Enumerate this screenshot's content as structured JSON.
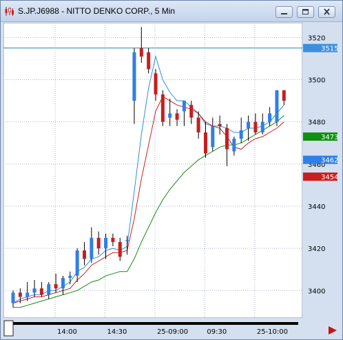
{
  "window": {
    "title": "S.JP.J6988 - NITTO DENKO CORP., 5 Min",
    "icon": "candlestick-chart-icon",
    "controls": [
      "minimize-icon",
      "restore-icon",
      "close-icon"
    ]
  },
  "chart_data": {
    "type": "candlestick",
    "yticks": [
      "3520",
      "3500",
      "3480",
      "3460",
      "3440",
      "3420",
      "3400"
    ],
    "xticks": [
      "14:00",
      "14:30",
      "25-09:00",
      "09:30",
      "25-10:00"
    ],
    "ylim": [
      3387,
      3527
    ],
    "price_labels": [
      {
        "text": "3515",
        "value": 3515,
        "color": "#3b8fe0"
      },
      {
        "text": "3473",
        "value": 3473,
        "color": "#109010"
      },
      {
        "text": "3462",
        "value": 3462,
        "color": "#2f7fe8"
      },
      {
        "text": "3454",
        "value": 3454,
        "color": "#c81e1e"
      }
    ],
    "hline": {
      "value": 3515,
      "color": "#208cac"
    },
    "candles": [
      {
        "o": 3394,
        "h": 3400,
        "l": 3392,
        "c": 3399
      },
      {
        "o": 3399,
        "h": 3401,
        "l": 3394,
        "c": 3397
      },
      {
        "o": 3397,
        "h": 3404,
        "l": 3395,
        "c": 3399
      },
      {
        "o": 3399,
        "h": 3405,
        "l": 3397,
        "c": 3401
      },
      {
        "o": 3401,
        "h": 3404,
        "l": 3397,
        "c": 3398
      },
      {
        "o": 3398,
        "h": 3404,
        "l": 3396,
        "c": 3403
      },
      {
        "o": 3403,
        "h": 3408,
        "l": 3399,
        "c": 3401
      },
      {
        "o": 3401,
        "h": 3407,
        "l": 3398,
        "c": 3406
      },
      {
        "o": 3406,
        "h": 3409,
        "l": 3403,
        "c": 3407
      },
      {
        "o": 3407,
        "h": 3420,
        "l": 3404,
        "c": 3419
      },
      {
        "o": 3419,
        "h": 3423,
        "l": 3412,
        "c": 3415
      },
      {
        "o": 3415,
        "h": 3430,
        "l": 3413,
        "c": 3425
      },
      {
        "o": 3425,
        "h": 3428,
        "l": 3417,
        "c": 3420
      },
      {
        "o": 3420,
        "h": 3427,
        "l": 3415,
        "c": 3425
      },
      {
        "o": 3425,
        "h": 3427,
        "l": 3421,
        "c": 3423
      },
      {
        "o": 3423,
        "h": 3425,
        "l": 3414,
        "c": 3416
      },
      {
        "o": 3424,
        "h": 3426,
        "l": 3417,
        "c": 3424
      },
      {
        "o": 3490,
        "h": 3515,
        "l": 3479,
        "c": 3513
      },
      {
        "o": 3515,
        "h": 3525,
        "l": 3508,
        "c": 3511
      },
      {
        "o": 3513,
        "h": 3515,
        "l": 3503,
        "c": 3505
      },
      {
        "o": 3503,
        "h": 3505,
        "l": 3490,
        "c": 3493
      },
      {
        "o": 3493,
        "h": 3495,
        "l": 3478,
        "c": 3480
      },
      {
        "o": 3482,
        "h": 3491,
        "l": 3478,
        "c": 3484
      },
      {
        "o": 3484,
        "h": 3486,
        "l": 3478,
        "c": 3481
      },
      {
        "o": 3485,
        "h": 3490,
        "l": 3478,
        "c": 3490
      },
      {
        "o": 3488,
        "h": 3490,
        "l": 3479,
        "c": 3482
      },
      {
        "o": 3482,
        "h": 3485,
        "l": 3472,
        "c": 3475
      },
      {
        "o": 3475,
        "h": 3480,
        "l": 3463,
        "c": 3465
      },
      {
        "o": 3468,
        "h": 3482,
        "l": 3466,
        "c": 3478
      },
      {
        "o": 3479,
        "h": 3483,
        "l": 3474,
        "c": 3478
      },
      {
        "o": 3477,
        "h": 3479,
        "l": 3459,
        "c": 3467
      },
      {
        "o": 3466,
        "h": 3473,
        "l": 3464,
        "c": 3472
      },
      {
        "o": 3472,
        "h": 3482,
        "l": 3470,
        "c": 3476
      },
      {
        "o": 3477,
        "h": 3483,
        "l": 3471,
        "c": 3480
      },
      {
        "o": 3480,
        "h": 3484,
        "l": 3474,
        "c": 3475
      },
      {
        "o": 3475,
        "h": 3484,
        "l": 3474,
        "c": 3480
      },
      {
        "o": 3480,
        "h": 3487,
        "l": 3478,
        "c": 3484
      },
      {
        "o": 3480,
        "h": 3495,
        "l": 3478,
        "c": 3495
      },
      {
        "o": 3495,
        "h": 3495,
        "l": 3488,
        "c": 3490
      }
    ],
    "series": [
      {
        "color": "#2c8fd4",
        "values": [
          3394,
          3396,
          3397,
          3398,
          3398,
          3400,
          3400,
          3402,
          3404,
          3409,
          3411,
          3415,
          3416,
          3419,
          3420,
          3419,
          3421,
          3447,
          3474,
          3496,
          3511,
          3500,
          3494,
          3490,
          3490,
          3487,
          3484,
          3479,
          3478,
          3478,
          3477,
          3475,
          3475,
          3477,
          3477,
          3478,
          3480,
          3484,
          3488
        ]
      },
      {
        "color": "#c81e1e",
        "values": [
          3394,
          3395,
          3396,
          3397,
          3397,
          3398,
          3399,
          3400,
          3401,
          3405,
          3408,
          3412,
          3414,
          3416,
          3418,
          3418,
          3419,
          3434,
          3453,
          3469,
          3485,
          3492,
          3490,
          3488,
          3487,
          3486,
          3484,
          3480,
          3478,
          3477,
          3473,
          3468,
          3467,
          3470,
          3472,
          3473,
          3475,
          3477,
          3480
        ]
      },
      {
        "color": "#138a13",
        "values": [
          3392,
          3392,
          3393,
          3394,
          3395,
          3396,
          3397,
          3398,
          3399,
          3400,
          3402,
          3404,
          3405,
          3407,
          3408,
          3409,
          3409,
          3415,
          3423,
          3430,
          3437,
          3443,
          3448,
          3452,
          3456,
          3459,
          3462,
          3464,
          3466,
          3468,
          3469,
          3469,
          3470,
          3472,
          3474,
          3476,
          3478,
          3480,
          3483
        ]
      }
    ]
  }
}
